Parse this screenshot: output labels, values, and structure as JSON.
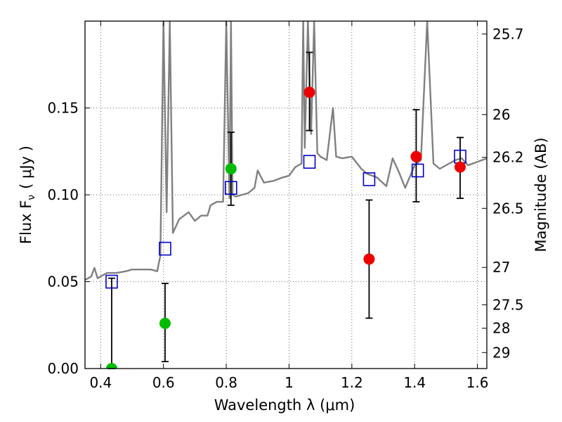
{
  "chart_data": {
    "type": "scatter",
    "xlabel": "Wavelength  λ (μm)",
    "ylabel": "Flux  F",
    "ylabel_sub": "ν",
    "ylabel_unit": "( μJy )",
    "y2label": "Magnitude (AB)",
    "xlim": [
      0.35,
      1.63
    ],
    "ylim": [
      0.0,
      0.2
    ],
    "grid": true,
    "x_ticks": [
      0.4,
      0.6,
      0.8,
      1.0,
      1.2,
      1.4,
      1.6
    ],
    "x_tick_labels": [
      "0.4",
      "0.6",
      "0.8",
      "1",
      "1.2",
      "1.4",
      "1.6"
    ],
    "y_ticks": [
      0.0,
      0.05,
      0.1,
      0.15
    ],
    "y_tick_labels": [
      "0.00",
      "0.05",
      "0.10",
      "0.15"
    ],
    "y2_ticks": [
      {
        "label": "25.7",
        "flux": 0.1926
      },
      {
        "label": "26",
        "flux": 0.1462
      },
      {
        "label": "26.2",
        "flux": 0.1216
      },
      {
        "label": "26.5",
        "flux": 0.0922
      },
      {
        "label": "27",
        "flux": 0.0582
      },
      {
        "label": "27.5",
        "flux": 0.0367
      },
      {
        "label": "28",
        "flux": 0.0232
      },
      {
        "label": "29",
        "flux": 0.0092
      }
    ],
    "series": [
      {
        "kind": "template-spectrum",
        "color": "#808080",
        "x": [
          0.35,
          0.37,
          0.38,
          0.39,
          0.4,
          0.42,
          0.45,
          0.48,
          0.5,
          0.53,
          0.56,
          0.58,
          0.59,
          0.6,
          0.61,
          0.62,
          0.63,
          0.65,
          0.68,
          0.7,
          0.72,
          0.74,
          0.75,
          0.77,
          0.79,
          0.8,
          0.81,
          0.815,
          0.82,
          0.83,
          0.85,
          0.87,
          0.89,
          0.9,
          0.92,
          0.95,
          0.98,
          1.0,
          1.02,
          1.04,
          1.045,
          1.05,
          1.06,
          1.07,
          1.08,
          1.09,
          1.1,
          1.12,
          1.14,
          1.15,
          1.17,
          1.2,
          1.23,
          1.25,
          1.28,
          1.31,
          1.33,
          1.35,
          1.37,
          1.4,
          1.42,
          1.44,
          1.46,
          1.48,
          1.5,
          1.53,
          1.55,
          1.57,
          1.6,
          1.63
        ],
        "y": [
          0.051,
          0.053,
          0.058,
          0.052,
          0.053,
          0.055,
          0.055,
          0.056,
          0.057,
          0.057,
          0.057,
          0.056,
          0.065,
          0.2,
          0.09,
          0.2,
          0.078,
          0.086,
          0.09,
          0.085,
          0.088,
          0.088,
          0.094,
          0.096,
          0.096,
          0.2,
          0.098,
          0.2,
          0.1,
          0.099,
          0.1,
          0.101,
          0.104,
          0.114,
          0.107,
          0.108,
          0.11,
          0.111,
          0.116,
          0.118,
          0.2,
          0.127,
          0.2,
          0.135,
          0.2,
          0.124,
          0.122,
          0.12,
          0.15,
          0.122,
          0.121,
          0.122,
          0.115,
          0.112,
          0.11,
          0.105,
          0.121,
          0.113,
          0.104,
          0.117,
          0.12,
          0.2,
          0.118,
          0.115,
          0.117,
          0.12,
          0.121,
          0.117,
          0.119,
          0.121
        ]
      },
      {
        "kind": "model-photometry",
        "color": "#0000cc",
        "marker": "open-square",
        "x": [
          0.435,
          0.605,
          0.815,
          1.065,
          1.255,
          1.41,
          1.545
        ],
        "y": [
          0.05,
          0.069,
          0.104,
          0.119,
          0.109,
          0.114,
          0.122
        ]
      },
      {
        "kind": "measured-optical",
        "color": "#00bb00",
        "marker": "circle",
        "x": [
          0.435,
          0.605,
          0.815
        ],
        "y": [
          0.0,
          0.026,
          0.115
        ],
        "yerr_low": [
          0.0,
          0.004,
          0.094
        ],
        "yerr_high": [
          0.052,
          0.049,
          0.136
        ]
      },
      {
        "kind": "measured-infrared",
        "color": "#ee0000",
        "marker": "circle",
        "x": [
          1.065,
          1.255,
          1.405,
          1.545
        ],
        "y": [
          0.159,
          0.063,
          0.122,
          0.116
        ],
        "yerr_low": [
          0.137,
          0.029,
          0.096,
          0.098
        ],
        "yerr_high": [
          0.182,
          0.097,
          0.149,
          0.133
        ]
      }
    ]
  }
}
